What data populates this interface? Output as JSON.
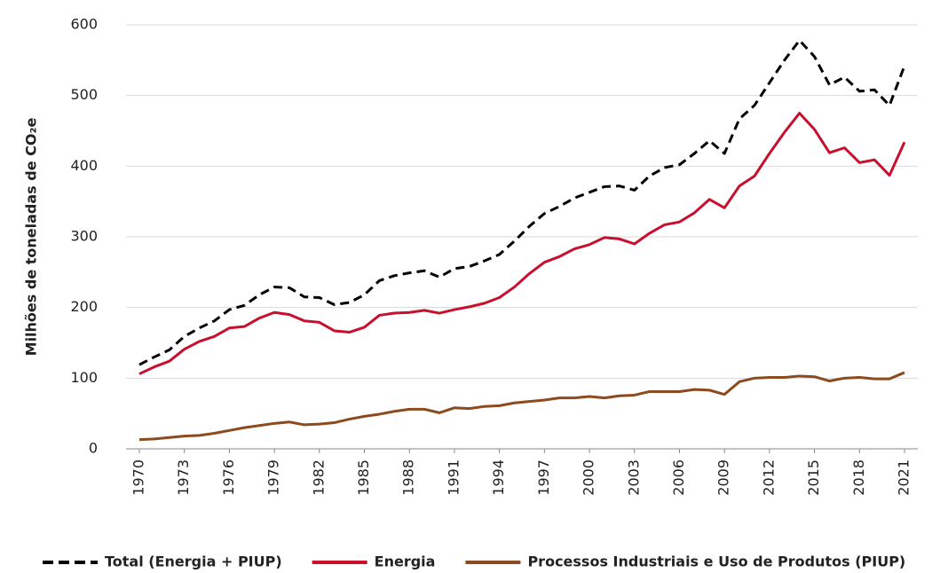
{
  "chart_data": {
    "type": "line",
    "y_label": "Milhões de toneladas de CO₂e",
    "x": [
      1970,
      1971,
      1972,
      1973,
      1974,
      1975,
      1976,
      1977,
      1978,
      1979,
      1980,
      1981,
      1982,
      1983,
      1984,
      1985,
      1986,
      1987,
      1988,
      1989,
      1990,
      1991,
      1992,
      1993,
      1994,
      1995,
      1996,
      1997,
      1998,
      1999,
      2000,
      2001,
      2002,
      2003,
      2004,
      2005,
      2006,
      2007,
      2008,
      2009,
      2010,
      2011,
      2012,
      2013,
      2014,
      2015,
      2016,
      2017,
      2018,
      2019,
      2020,
      2021
    ],
    "xlim": [
      1970,
      2021
    ],
    "xticks": [
      1970,
      1973,
      1976,
      1979,
      1982,
      1985,
      1988,
      1991,
      1994,
      1997,
      2000,
      2003,
      2006,
      2009,
      2012,
      2015,
      2018,
      2021
    ],
    "ylim": [
      0,
      600
    ],
    "yticks": [
      0,
      100,
      200,
      300,
      400,
      500,
      600
    ],
    "grid": true,
    "legend": "bottom",
    "series": [
      {
        "name": "Total (Energia + PIUP)",
        "color": "#000000",
        "dashed": true,
        "values": [
          119,
          130,
          140,
          159,
          171,
          181,
          197,
          203,
          218,
          229,
          228,
          215,
          214,
          204,
          207,
          218,
          238,
          245,
          249,
          252,
          243,
          255,
          258,
          266,
          275,
          294,
          315,
          333,
          343,
          355,
          363,
          371,
          372,
          366,
          386,
          398,
          402,
          418,
          436,
          418,
          467,
          486,
          518,
          550,
          578,
          555,
          515,
          526,
          506,
          508,
          486,
          542
        ]
      },
      {
        "name": "Energia",
        "color": "#c8102e",
        "dashed": false,
        "values": [
          106,
          116,
          124,
          141,
          152,
          159,
          171,
          173,
          185,
          193,
          190,
          181,
          179,
          167,
          165,
          172,
          189,
          192,
          193,
          196,
          192,
          197,
          201,
          206,
          214,
          229,
          248,
          264,
          272,
          283,
          289,
          299,
          297,
          290,
          305,
          317,
          321,
          334,
          353,
          341,
          372,
          386,
          418,
          448,
          475,
          452,
          419,
          426,
          405,
          409,
          387,
          434
        ]
      },
      {
        "name": "Processos Industriais e Uso de Produtos (PIUP)",
        "color": "#8c4a1f",
        "dashed": false,
        "values": [
          13,
          14,
          16,
          18,
          19,
          22,
          26,
          30,
          33,
          36,
          38,
          34,
          35,
          37,
          42,
          46,
          49,
          53,
          56,
          56,
          51,
          58,
          57,
          60,
          61,
          65,
          67,
          69,
          72,
          72,
          74,
          72,
          75,
          76,
          81,
          81,
          81,
          84,
          83,
          77,
          95,
          100,
          101,
          101,
          103,
          102,
          96,
          100,
          101,
          99,
          99,
          108
        ]
      }
    ]
  }
}
